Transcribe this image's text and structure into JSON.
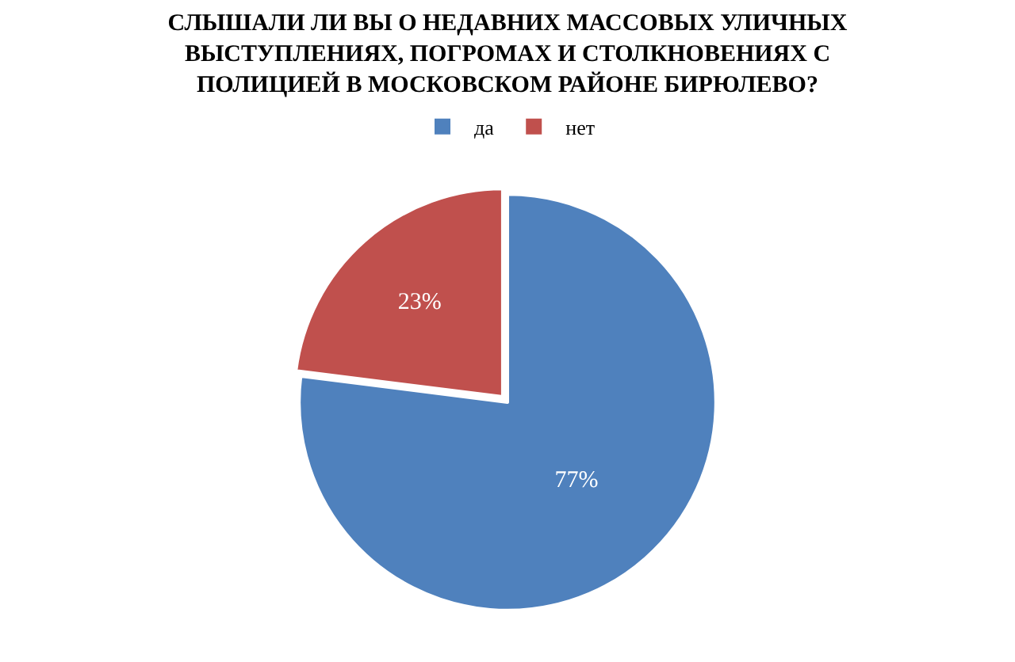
{
  "chart_data": {
    "type": "pie",
    "title": "СЛЫШАЛИ ЛИ ВЫ О НЕДАВНИХ МАССОВЫХ УЛИЧНЫХ\nВЫСТУПЛЕНИЯХ, ПОГРОМАХ И СТОЛКНОВЕНИЯХ С\nПОЛИЦИЕЙ В МОСКОВСКОМ РАЙОНЕ БИРЮЛЕВО?",
    "categories": [
      "да",
      "нет"
    ],
    "values": [
      77,
      23
    ],
    "colors": [
      "#4f81bd",
      "#c0504d"
    ],
    "value_labels": [
      "77%",
      "23%"
    ],
    "legend": "top"
  }
}
